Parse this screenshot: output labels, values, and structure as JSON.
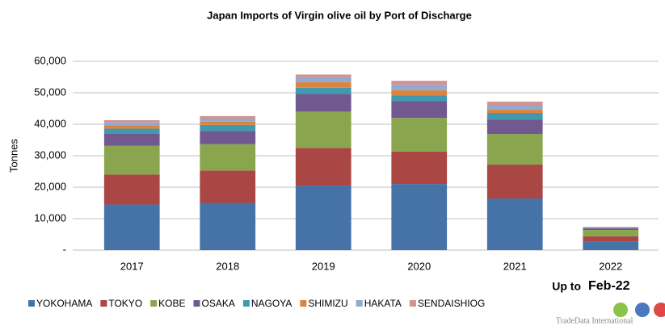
{
  "chart_data": {
    "type": "stacked_bar",
    "title": "Japan Imports of Virgin olive oil by Port of Discharge",
    "y_label": "Tonnes",
    "categories": [
      "2017",
      "2018",
      "2019",
      "2020",
      "2021",
      "2022"
    ],
    "series": [
      {
        "name": "YOKOHAMA",
        "color": "#4572a7",
        "values": [
          14500,
          15000,
          20500,
          21000,
          16400,
          2800
        ]
      },
      {
        "name": "TOKYO",
        "color": "#aa4643",
        "values": [
          9500,
          10300,
          12000,
          10300,
          10800,
          1600
        ]
      },
      {
        "name": "KOBE",
        "color": "#89a54e",
        "values": [
          9200,
          8400,
          11500,
          10700,
          9700,
          2000
        ]
      },
      {
        "name": "OSAKA",
        "color": "#71588f",
        "values": [
          3900,
          4100,
          5600,
          5400,
          4600,
          500
        ]
      },
      {
        "name": "NAGOYA",
        "color": "#4198af",
        "values": [
          1500,
          2000,
          2000,
          1800,
          2100,
          200
        ]
      },
      {
        "name": "SHIMIZU",
        "color": "#db843d",
        "values": [
          1000,
          1000,
          1800,
          1600,
          1000,
          100
        ]
      },
      {
        "name": "HAKATA",
        "color": "#93a9cf",
        "values": [
          1000,
          1000,
          1500,
          1800,
          1300,
          100
        ]
      },
      {
        "name": "SENDAISHIOG",
        "color": "#d19392",
        "values": [
          700,
          800,
          900,
          1200,
          1300,
          100
        ]
      }
    ],
    "ylim": [
      0,
      60000
    ],
    "yticks": [
      {
        "value": 0,
        "label": "-"
      },
      {
        "value": 10000,
        "label": "10,000"
      },
      {
        "value": 20000,
        "label": "20,000"
      },
      {
        "value": 30000,
        "label": "30,000"
      },
      {
        "value": 40000,
        "label": "40,000"
      },
      {
        "value": 50000,
        "label": "50,000"
      },
      {
        "value": 60000,
        "label": "60,000"
      }
    ],
    "annotations": [
      "Up to",
      "Feb-22"
    ],
    "brand": "TradeData International",
    "legend": "bottom"
  }
}
